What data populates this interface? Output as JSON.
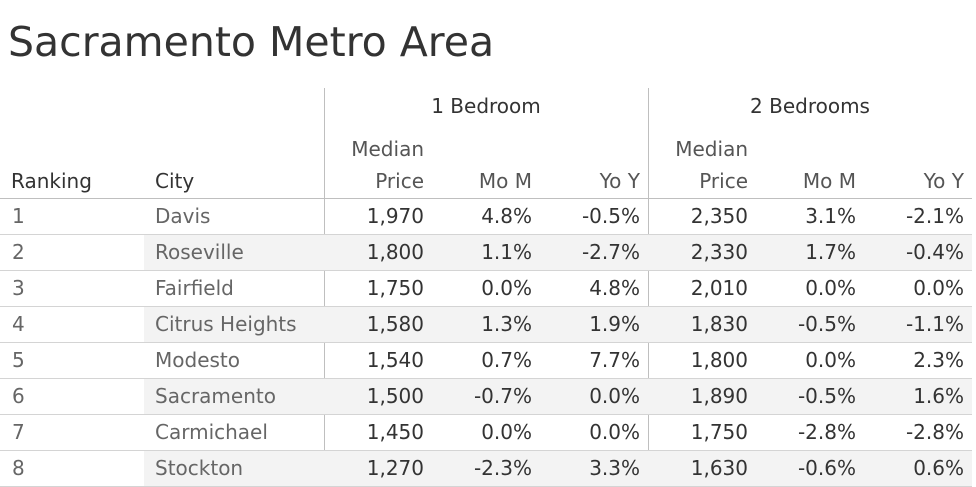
{
  "title": "Sacramento Metro Area",
  "chart_data": {
    "type": "table",
    "title": "Sacramento Metro Area",
    "groups": [
      "1 Bedroom",
      "2 Bedrooms"
    ],
    "columns": [
      "Ranking",
      "City",
      "Median Price",
      "Mo M",
      "Yo Y",
      "Median Price",
      "Mo M",
      "Yo Y"
    ],
    "header_top": [
      "Median",
      "Median"
    ],
    "header_bottom": {
      "ranking": "Ranking",
      "city": "City",
      "price": "Price",
      "mom": "Mo M",
      "yoy": "Yo Y"
    },
    "rows": [
      {
        "rank": "1",
        "city": "Davis",
        "b1_price": "1,970",
        "b1_mom": "4.8%",
        "b1_yoy": "-0.5%",
        "b2_price": "2,350",
        "b2_mom": "3.1%",
        "b2_yoy": "-2.1%"
      },
      {
        "rank": "2",
        "city": "Roseville",
        "b1_price": "1,800",
        "b1_mom": "1.1%",
        "b1_yoy": "-2.7%",
        "b2_price": "2,330",
        "b2_mom": "1.7%",
        "b2_yoy": "-0.4%"
      },
      {
        "rank": "3",
        "city": "Fairfield",
        "b1_price": "1,750",
        "b1_mom": "0.0%",
        "b1_yoy": "4.8%",
        "b2_price": "2,010",
        "b2_mom": "0.0%",
        "b2_yoy": "0.0%"
      },
      {
        "rank": "4",
        "city": "Citrus Heights",
        "b1_price": "1,580",
        "b1_mom": "1.3%",
        "b1_yoy": "1.9%",
        "b2_price": "1,830",
        "b2_mom": "-0.5%",
        "b2_yoy": "-1.1%"
      },
      {
        "rank": "5",
        "city": "Modesto",
        "b1_price": "1,540",
        "b1_mom": "0.7%",
        "b1_yoy": "7.7%",
        "b2_price": "1,800",
        "b2_mom": "0.0%",
        "b2_yoy": "2.3%"
      },
      {
        "rank": "6",
        "city": "Sacramento",
        "b1_price": "1,500",
        "b1_mom": "-0.7%",
        "b1_yoy": "0.0%",
        "b2_price": "1,890",
        "b2_mom": "-0.5%",
        "b2_yoy": "1.6%"
      },
      {
        "rank": "7",
        "city": "Carmichael",
        "b1_price": "1,450",
        "b1_mom": "0.0%",
        "b1_yoy": "0.0%",
        "b2_price": "1,750",
        "b2_mom": "-2.8%",
        "b2_yoy": "-2.8%"
      },
      {
        "rank": "8",
        "city": "Stockton",
        "b1_price": "1,270",
        "b1_mom": "-2.3%",
        "b1_yoy": "3.3%",
        "b2_price": "1,630",
        "b2_mom": "-0.6%",
        "b2_yoy": "0.6%"
      }
    ]
  }
}
